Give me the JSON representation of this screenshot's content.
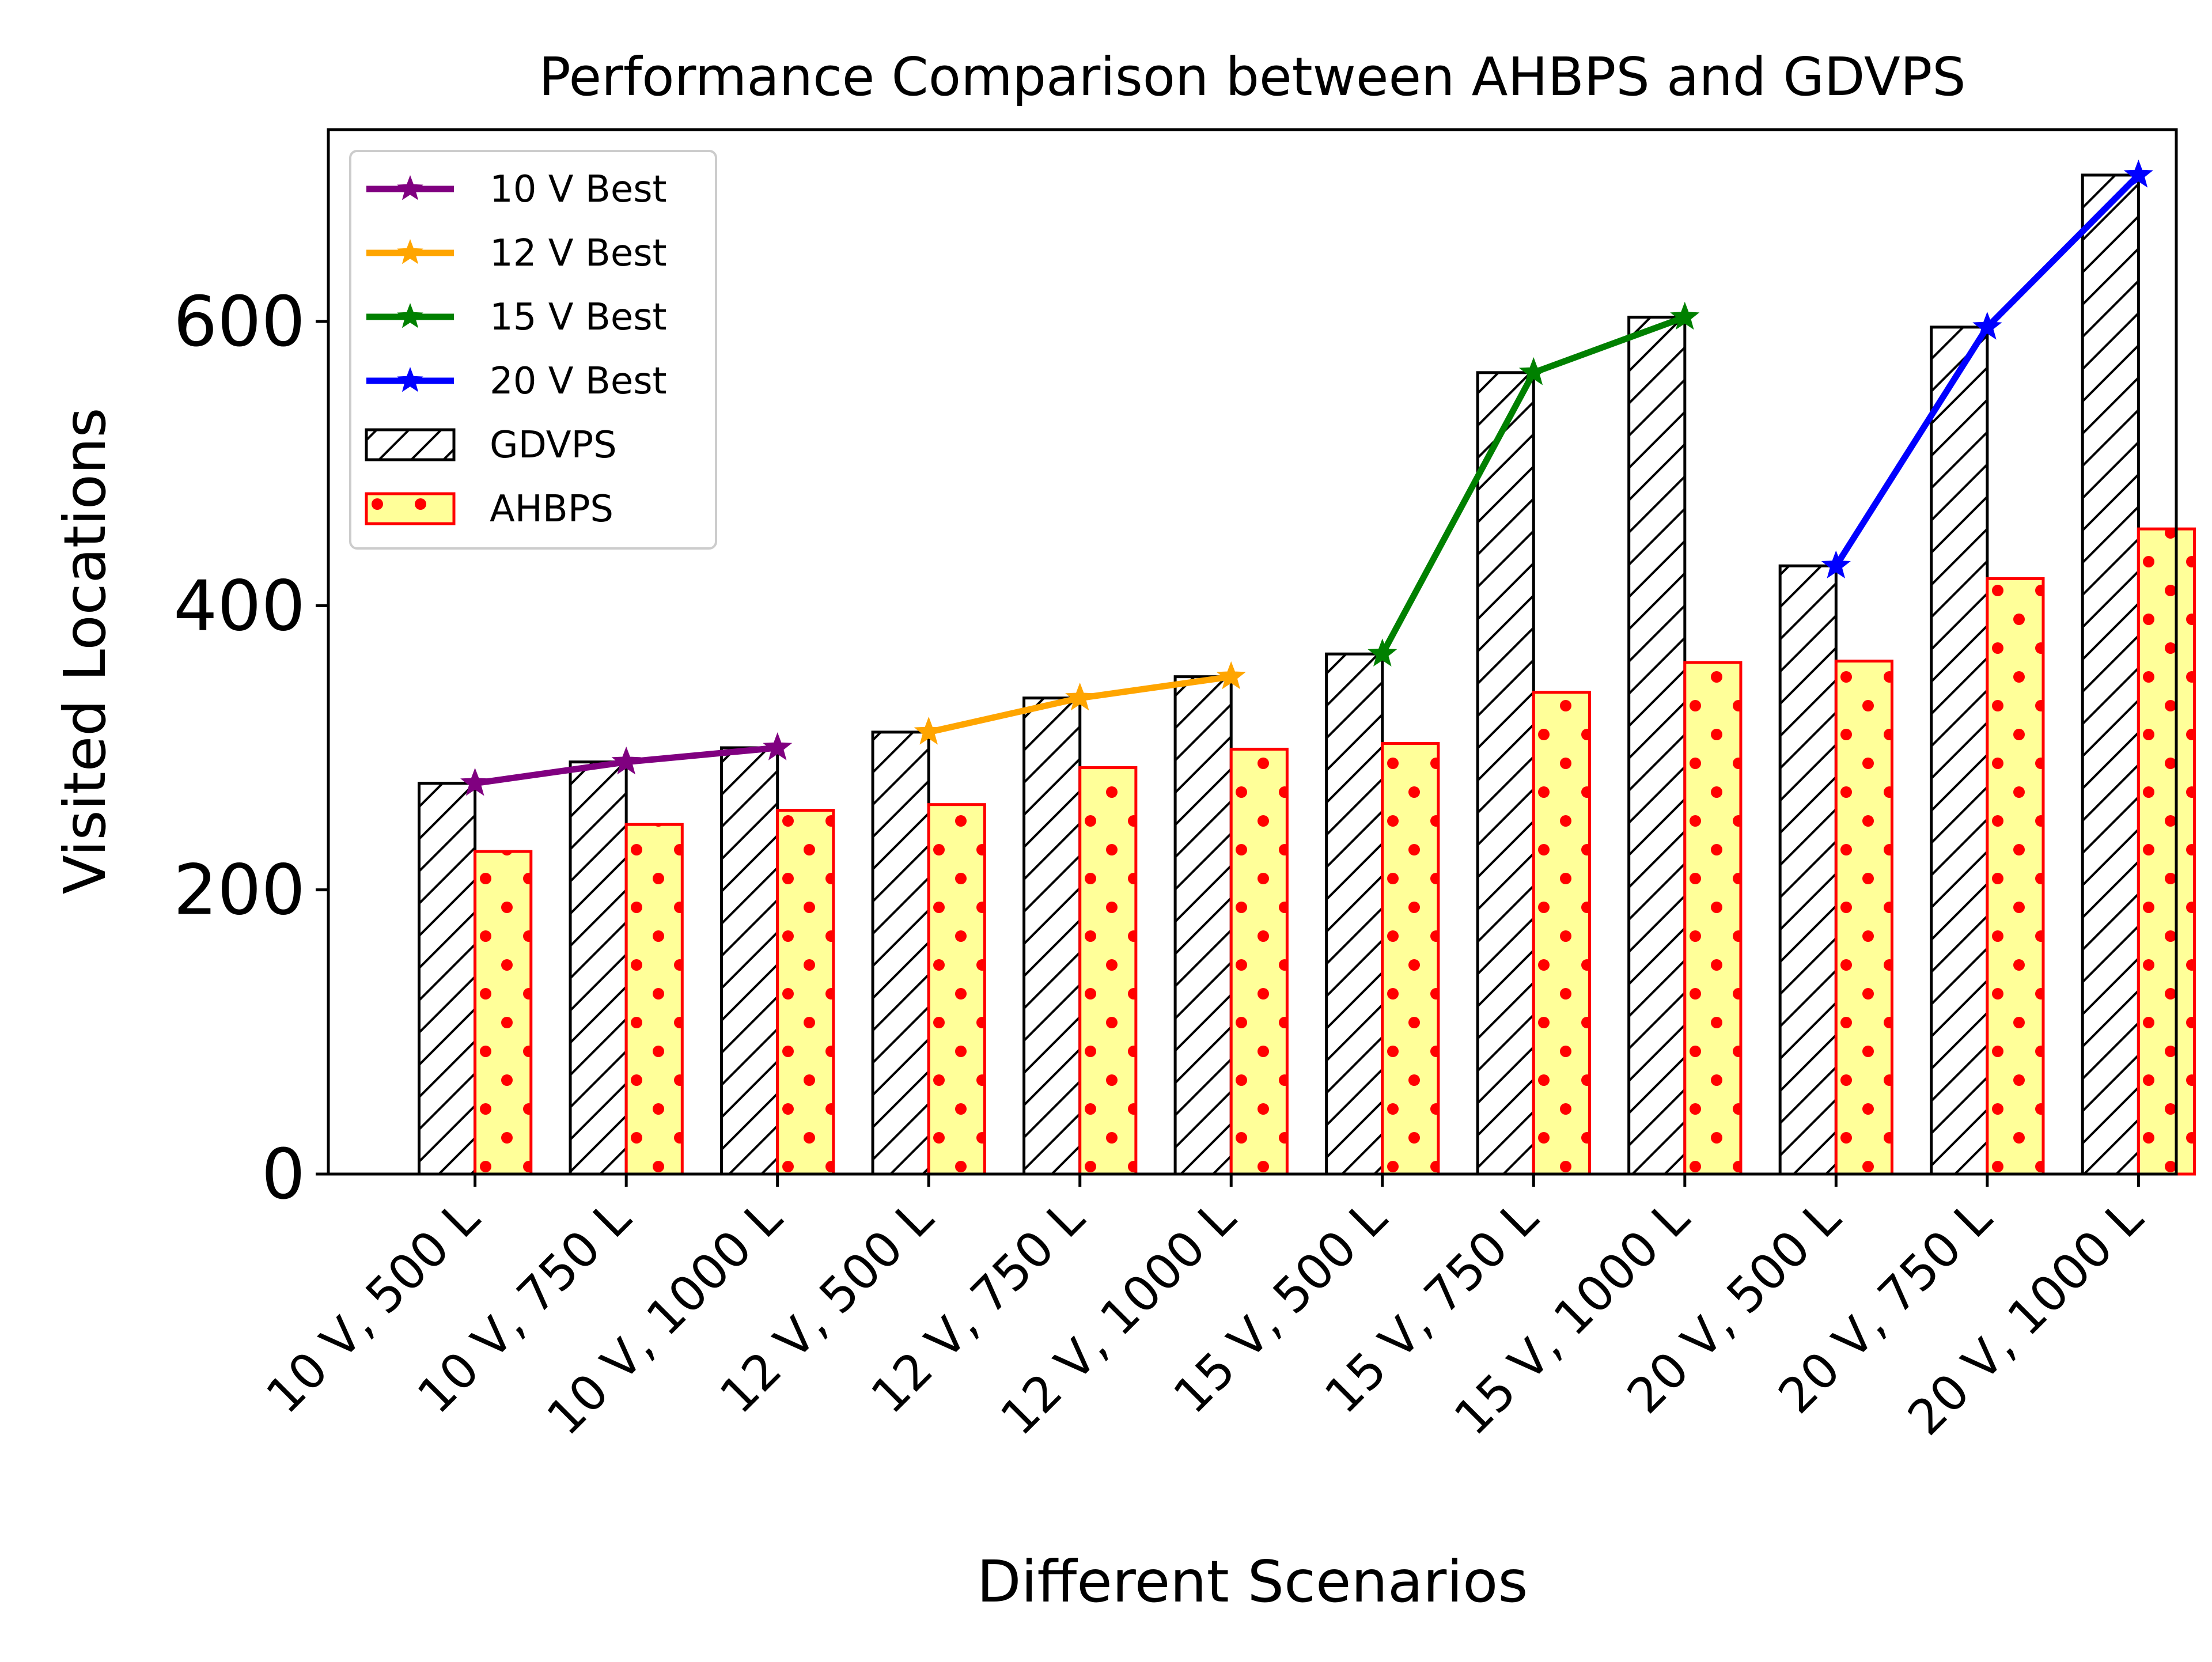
{
  "chart_data": {
    "type": "bar",
    "title": "Performance Comparison between AHBPS and GDVPS",
    "xlabel": "Different Scenarios",
    "ylabel": "Visited Locations",
    "ylim": [
      0,
      735
    ],
    "yticks": [
      0,
      200,
      400,
      600
    ],
    "grid": false,
    "legend_position": "top-left",
    "categories": [
      "10 V, 500 L",
      "10 V, 750 L",
      "10 V, 1000 L",
      "12 V, 500 L",
      "12 V, 750 L",
      "12 V, 1000 L",
      "15 V, 500 L",
      "15 V, 750 L",
      "15 V, 1000 L",
      "20 V, 500 L",
      "20 V, 750 L",
      "20 V, 1000 L"
    ],
    "series": [
      {
        "name": "GDVPS",
        "kind": "bar",
        "style": "hatch",
        "edge_color": "#000000",
        "fill_color": "#ffffff",
        "values": [
          275,
          290,
          300,
          311,
          335,
          350,
          366,
          564,
          603,
          428,
          596,
          703
        ]
      },
      {
        "name": "AHBPS",
        "kind": "bar",
        "style": "dots",
        "edge_color": "#ff0000",
        "fill_color": "#ffff99",
        "values": [
          227,
          246,
          256,
          260,
          286,
          299,
          303,
          339,
          360,
          361,
          419,
          454
        ]
      }
    ],
    "lines": [
      {
        "name": "10 V Best",
        "color": "#800080",
        "category_indices": [
          0,
          1,
          2
        ],
        "values": [
          275,
          290,
          300
        ]
      },
      {
        "name": "12 V Best",
        "color": "#ffa500",
        "category_indices": [
          3,
          4,
          5
        ],
        "values": [
          311,
          335,
          350
        ]
      },
      {
        "name": "15 V Best",
        "color": "#008000",
        "category_indices": [
          6,
          7,
          8
        ],
        "values": [
          366,
          564,
          603
        ]
      },
      {
        "name": "20 V Best",
        "color": "#0000ff",
        "category_indices": [
          9,
          10,
          11
        ],
        "values": [
          428,
          596,
          703
        ]
      }
    ]
  }
}
